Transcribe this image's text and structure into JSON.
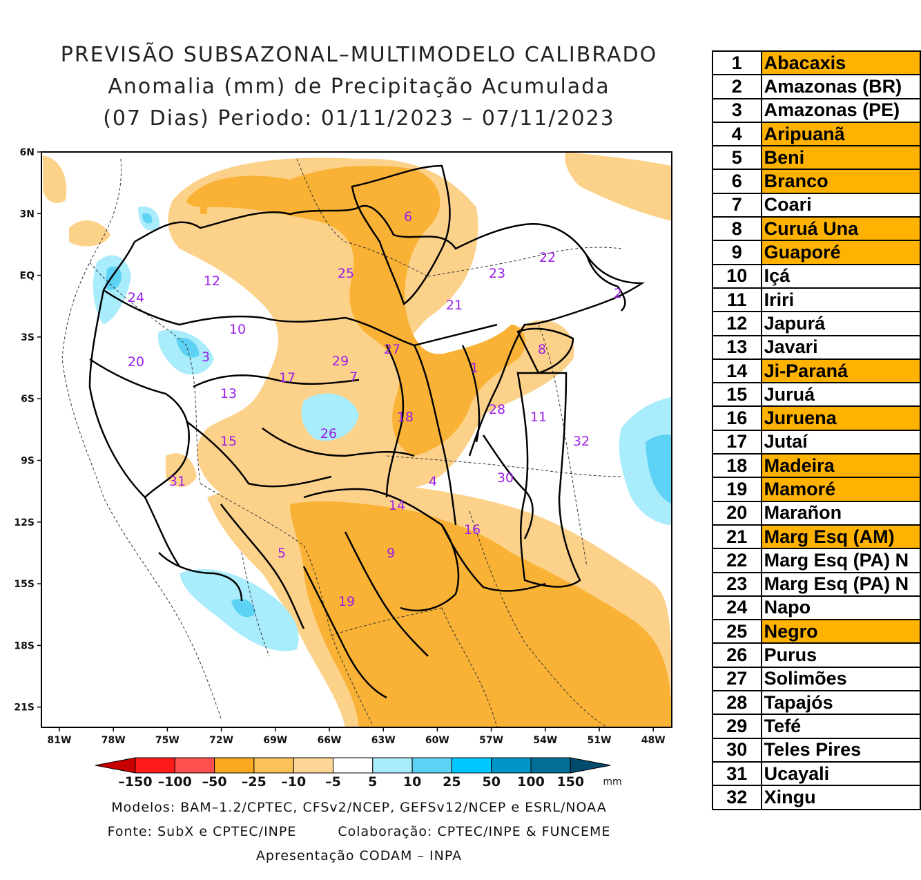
{
  "title": {
    "line1": "PREVISÃO SUBSAZONAL–MULTIMODELO CALIBRADO",
    "line2": "Anomalia (mm) de Precipitação Acumulada",
    "line3": "(07 Dias) Periodo: 01/11/2023 – 07/11/2023"
  },
  "map": {
    "lat_ticks": [
      "6N",
      "3N",
      "EQ",
      "3S",
      "6S",
      "9S",
      "12S",
      "15S",
      "18S",
      "21S"
    ],
    "lon_ticks": [
      "81W",
      "78W",
      "75W",
      "72W",
      "69W",
      "66W",
      "63W",
      "60W",
      "57W",
      "54W",
      "51W",
      "48W"
    ],
    "basin_labels": [
      {
        "id": "1",
        "text": "1"
      },
      {
        "id": "2",
        "text": "2"
      },
      {
        "id": "3",
        "text": "3"
      },
      {
        "id": "4",
        "text": "4"
      },
      {
        "id": "5",
        "text": "5"
      },
      {
        "id": "6",
        "text": "6"
      },
      {
        "id": "7",
        "text": "7"
      },
      {
        "id": "8",
        "text": "8"
      },
      {
        "id": "9",
        "text": "9"
      },
      {
        "id": "10",
        "text": "10"
      },
      {
        "id": "11",
        "text": "11"
      },
      {
        "id": "12",
        "text": "12"
      },
      {
        "id": "13",
        "text": "13"
      },
      {
        "id": "14",
        "text": "14"
      },
      {
        "id": "15",
        "text": "15"
      },
      {
        "id": "16",
        "text": "16"
      },
      {
        "id": "17",
        "text": "17"
      },
      {
        "id": "18",
        "text": "18"
      },
      {
        "id": "19",
        "text": "19"
      },
      {
        "id": "20",
        "text": "20"
      },
      {
        "id": "21",
        "text": "21"
      },
      {
        "id": "22",
        "text": "22"
      },
      {
        "id": "23",
        "text": "23"
      },
      {
        "id": "24",
        "text": "24"
      },
      {
        "id": "25",
        "text": "25"
      },
      {
        "id": "26",
        "text": "26"
      },
      {
        "id": "27",
        "text": "27"
      },
      {
        "id": "28",
        "text": "28"
      },
      {
        "id": "29",
        "text": "29"
      },
      {
        "id": "30",
        "text": "30"
      },
      {
        "id": "31",
        "text": "31"
      },
      {
        "id": "32",
        "text": "32"
      }
    ],
    "colors": {
      "orange_strong": "#f9b235",
      "orange_light": "#fcd28a",
      "blue_light": "#a9ecfb",
      "blue_medium": "#5ed2f4",
      "basin_label": "#9a1ee6"
    }
  },
  "colorbar": {
    "labels": [
      "–150",
      "–100",
      "–50",
      "–25",
      "–10",
      "–5",
      "5",
      "10",
      "25",
      "50",
      "100",
      "150"
    ],
    "unit": "mm",
    "colors": [
      "#c80000",
      "#ff1a1a",
      "#ff5050",
      "#f9a81f",
      "#fbc15a",
      "#fcd597",
      "#ffffff",
      "#a9ecfb",
      "#5ed2f4",
      "#00c8ff",
      "#0096c8",
      "#006e96",
      "#004b6e"
    ]
  },
  "footer": {
    "line1": "Modelos: BAM–1.2/CPTEC, CFSv2/NCEP, GEFSv12/NCEP e ESRL/NOAA",
    "line2_left": "Fonte: SubX e CPTEC/INPE",
    "line2_right": "Colaboração: CPTEC/INPE & FUNCEME",
    "line3": "Apresentação CODAM – INPA"
  },
  "legend": [
    {
      "num": "1",
      "name": "Abacaxis",
      "highlight": true
    },
    {
      "num": "2",
      "name": "Amazonas (BR)",
      "highlight": false
    },
    {
      "num": "3",
      "name": "Amazonas (PE)",
      "highlight": false
    },
    {
      "num": "4",
      "name": "Aripuanã",
      "highlight": true
    },
    {
      "num": "5",
      "name": "Beni",
      "highlight": true
    },
    {
      "num": "6",
      "name": "Branco",
      "highlight": true
    },
    {
      "num": "7",
      "name": "Coari",
      "highlight": false
    },
    {
      "num": "8",
      "name": "Curuá Una",
      "highlight": true
    },
    {
      "num": "9",
      "name": "Guaporé",
      "highlight": true
    },
    {
      "num": "10",
      "name": "Içá",
      "highlight": false
    },
    {
      "num": "11",
      "name": "Iriri",
      "highlight": false
    },
    {
      "num": "12",
      "name": "Japurá",
      "highlight": false
    },
    {
      "num": "13",
      "name": "Javari",
      "highlight": false
    },
    {
      "num": "14",
      "name": "Ji-Paraná",
      "highlight": true
    },
    {
      "num": "15",
      "name": "Juruá",
      "highlight": false
    },
    {
      "num": "16",
      "name": "Juruena",
      "highlight": true
    },
    {
      "num": "17",
      "name": "Jutaí",
      "highlight": false
    },
    {
      "num": "18",
      "name": "Madeira",
      "highlight": true
    },
    {
      "num": "19",
      "name": "Mamoré",
      "highlight": true
    },
    {
      "num": "20",
      "name": "Marañon",
      "highlight": false
    },
    {
      "num": "21",
      "name": "Marg Esq (AM)",
      "highlight": true
    },
    {
      "num": "22",
      "name": "Marg Esq (PA) N",
      "highlight": false
    },
    {
      "num": "23",
      "name": "Marg Esq (PA) N",
      "highlight": false
    },
    {
      "num": "24",
      "name": "Napo",
      "highlight": false
    },
    {
      "num": "25",
      "name": "Negro",
      "highlight": true
    },
    {
      "num": "26",
      "name": "Purus",
      "highlight": false
    },
    {
      "num": "27",
      "name": "Solimões",
      "highlight": false
    },
    {
      "num": "28",
      "name": "Tapajós",
      "highlight": false
    },
    {
      "num": "29",
      "name": "Tefé",
      "highlight": false
    },
    {
      "num": "30",
      "name": "Teles Pires",
      "highlight": false
    },
    {
      "num": "31",
      "name": "Ucayali",
      "highlight": false
    },
    {
      "num": "32",
      "name": "Xingu",
      "highlight": false
    }
  ]
}
